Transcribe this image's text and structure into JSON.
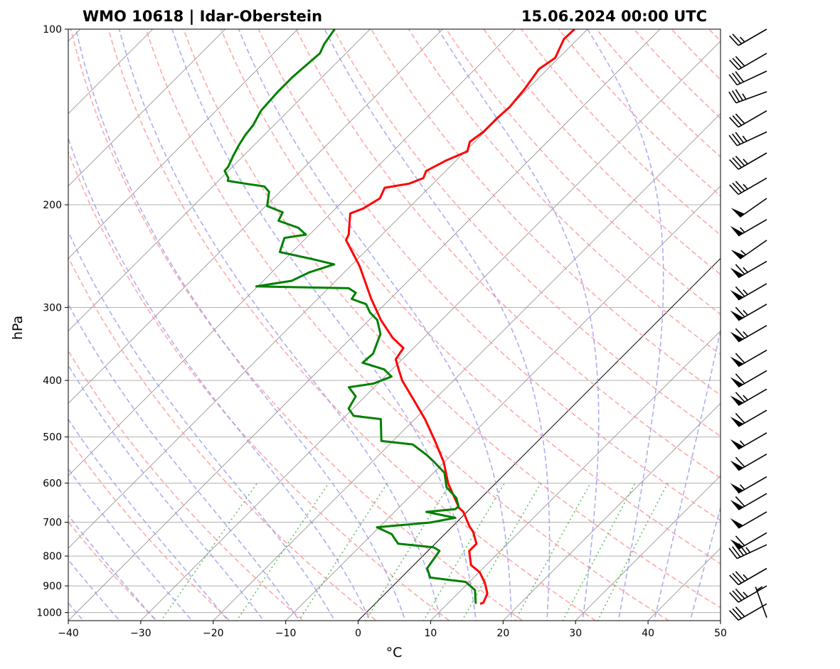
{
  "chart_data": {
    "type": "line",
    "subtype": "skew-t log-p",
    "title_left": "WMO 10618 | Idar-Oberstein",
    "title_right": "15.06.2024 00:00 UTC",
    "xlabel": "°C",
    "ylabel": "hPa",
    "xlim": [
      -40,
      50
    ],
    "ylim": [
      1030,
      100
    ],
    "x_ticks": [
      -40,
      -30,
      -20,
      -10,
      0,
      10,
      20,
      30,
      40,
      50
    ],
    "y_ticks": [
      100,
      200,
      300,
      400,
      500,
      600,
      700,
      800,
      900,
      1000
    ],
    "grid": true,
    "colors": {
      "temperature": "#ff0000",
      "dewpoint": "#008000",
      "dry_adiabat": "#ff9999",
      "moist_adiabat": "#9999ee",
      "mixing_ratio": "#44aa44",
      "isotherm": "#808080"
    },
    "series": [
      {
        "name": "Temperature",
        "points": [
          [
            966,
            14.5
          ],
          [
            962,
            14.8
          ],
          [
            928,
            14.1
          ],
          [
            890,
            12.3
          ],
          [
            853,
            10.1
          ],
          [
            829,
            7.9
          ],
          [
            784,
            5.7
          ],
          [
            762,
            5.7
          ],
          [
            727,
            3.6
          ],
          [
            711,
            2.3
          ],
          [
            672,
            -0.5
          ],
          [
            662,
            -1.6
          ],
          [
            601,
            -6.5
          ],
          [
            552,
            -10.1
          ],
          [
            508,
            -14.2
          ],
          [
            466,
            -18.6
          ],
          [
            429,
            -23.2
          ],
          [
            400,
            -27.1
          ],
          [
            383,
            -29.1
          ],
          [
            368,
            -30.9
          ],
          [
            352,
            -31.4
          ],
          [
            338,
            -34.3
          ],
          [
            315,
            -38.4
          ],
          [
            290,
            -42.6
          ],
          [
            274,
            -45.3
          ],
          [
            255,
            -48.7
          ],
          [
            241,
            -51.7
          ],
          [
            230,
            -54.2
          ],
          [
            225,
            -54.6
          ],
          [
            207,
            -57.3
          ],
          [
            203,
            -56.2
          ],
          [
            195,
            -55.3
          ],
          [
            187,
            -56.1
          ],
          [
            184,
            -53.3
          ],
          [
            180,
            -52.1
          ],
          [
            175,
            -52.7
          ],
          [
            168,
            -51.4
          ],
          [
            162,
            -49.7
          ],
          [
            156,
            -50.7
          ],
          [
            150,
            -50.2
          ],
          [
            142,
            -50.2
          ],
          [
            136,
            -50.0
          ],
          [
            127,
            -50.4
          ],
          [
            117,
            -51.2
          ],
          [
            112,
            -50.5
          ],
          [
            104,
            -51.9
          ],
          [
            100,
            -51.8
          ]
        ]
      },
      {
        "name": "Dewpoint",
        "points": [
          [
            966,
            13.9
          ],
          [
            915,
            11.9
          ],
          [
            886,
            9.5
          ],
          [
            871,
            4.0
          ],
          [
            840,
            2.3
          ],
          [
            784,
            1.6
          ],
          [
            773,
            0.3
          ],
          [
            762,
            -5.1
          ],
          [
            734,
            -7.3
          ],
          [
            714,
            -10.3
          ],
          [
            701,
            -3.6
          ],
          [
            688,
            -0.8
          ],
          [
            672,
            -5.6
          ],
          [
            665,
            -2.0
          ],
          [
            658,
            -1.9
          ],
          [
            636,
            -3.4
          ],
          [
            610,
            -6.2
          ],
          [
            576,
            -8.5
          ],
          [
            552,
            -11.4
          ],
          [
            537,
            -13.4
          ],
          [
            515,
            -16.8
          ],
          [
            508,
            -21.6
          ],
          [
            466,
            -24.7
          ],
          [
            460,
            -28.9
          ],
          [
            447,
            -30.6
          ],
          [
            426,
            -31.3
          ],
          [
            411,
            -33.5
          ],
          [
            405,
            -30.6
          ],
          [
            394,
            -29.1
          ],
          [
            383,
            -31.1
          ],
          [
            373,
            -35.0
          ],
          [
            360,
            -34.8
          ],
          [
            333,
            -36.5
          ],
          [
            315,
            -38.9
          ],
          [
            306,
            -40.9
          ],
          [
            296,
            -42.6
          ],
          [
            290,
            -45.3
          ],
          [
            283,
            -45.6
          ],
          [
            278,
            -47.2
          ],
          [
            276,
            -60.2
          ],
          [
            270,
            -56.1
          ],
          [
            261,
            -54.8
          ],
          [
            253,
            -52.5
          ],
          [
            248,
            -56.1
          ],
          [
            241,
            -61.7
          ],
          [
            228,
            -63.0
          ],
          [
            225,
            -60.5
          ],
          [
            219,
            -62.5
          ],
          [
            213,
            -66.2
          ],
          [
            206,
            -66.8
          ],
          [
            201,
            -69.8
          ],
          [
            190,
            -71.5
          ],
          [
            186,
            -72.9
          ],
          [
            184,
            -75.9
          ],
          [
            182,
            -78.7
          ],
          [
            180,
            -79.0
          ],
          [
            175,
            -80.5
          ],
          [
            172,
            -80.6
          ],
          [
            165,
            -81.4
          ],
          [
            158,
            -82.1
          ],
          [
            152,
            -82.6
          ],
          [
            146,
            -82.9
          ],
          [
            138,
            -83.8
          ],
          [
            128,
            -84.1
          ],
          [
            121,
            -84.1
          ],
          [
            114,
            -83.8
          ],
          [
            110,
            -83.6
          ],
          [
            106,
            -84.3
          ],
          [
            100,
            -84.9
          ]
        ]
      }
    ],
    "wind_barbs": [
      {
        "p": 100,
        "dir": 240,
        "kt": 25
      },
      {
        "p": 110,
        "dir": 240,
        "kt": 30
      },
      {
        "p": 118,
        "dir": 245,
        "kt": 30
      },
      {
        "p": 128,
        "dir": 250,
        "kt": 35
      },
      {
        "p": 138,
        "dir": 240,
        "kt": 30
      },
      {
        "p": 150,
        "dir": 245,
        "kt": 35
      },
      {
        "p": 163,
        "dir": 240,
        "kt": 35
      },
      {
        "p": 180,
        "dir": 240,
        "kt": 35
      },
      {
        "p": 195,
        "dir": 235,
        "kt": 50
      },
      {
        "p": 212,
        "dir": 240,
        "kt": 55
      },
      {
        "p": 230,
        "dir": 235,
        "kt": 55
      },
      {
        "p": 250,
        "dir": 240,
        "kt": 65
      },
      {
        "p": 273,
        "dir": 240,
        "kt": 65
      },
      {
        "p": 296,
        "dir": 240,
        "kt": 65
      },
      {
        "p": 322,
        "dir": 240,
        "kt": 65
      },
      {
        "p": 355,
        "dir": 240,
        "kt": 60
      },
      {
        "p": 385,
        "dir": 240,
        "kt": 60
      },
      {
        "p": 414,
        "dir": 240,
        "kt": 65
      },
      {
        "p": 450,
        "dir": 240,
        "kt": 60
      },
      {
        "p": 492,
        "dir": 240,
        "kt": 55
      },
      {
        "p": 535,
        "dir": 240,
        "kt": 60
      },
      {
        "p": 585,
        "dir": 240,
        "kt": 55
      },
      {
        "p": 625,
        "dir": 240,
        "kt": 60
      },
      {
        "p": 672,
        "dir": 240,
        "kt": 50
      },
      {
        "p": 730,
        "dir": 240,
        "kt": 60
      },
      {
        "p": 765,
        "dir": 245,
        "kt": 45
      },
      {
        "p": 840,
        "dir": 240,
        "kt": 35
      },
      {
        "p": 900,
        "dir": 240,
        "kt": 35
      },
      {
        "p": 966,
        "dir": 240,
        "kt": 30
      },
      {
        "p": 1020,
        "dir": 340,
        "kt": 5
      }
    ]
  }
}
